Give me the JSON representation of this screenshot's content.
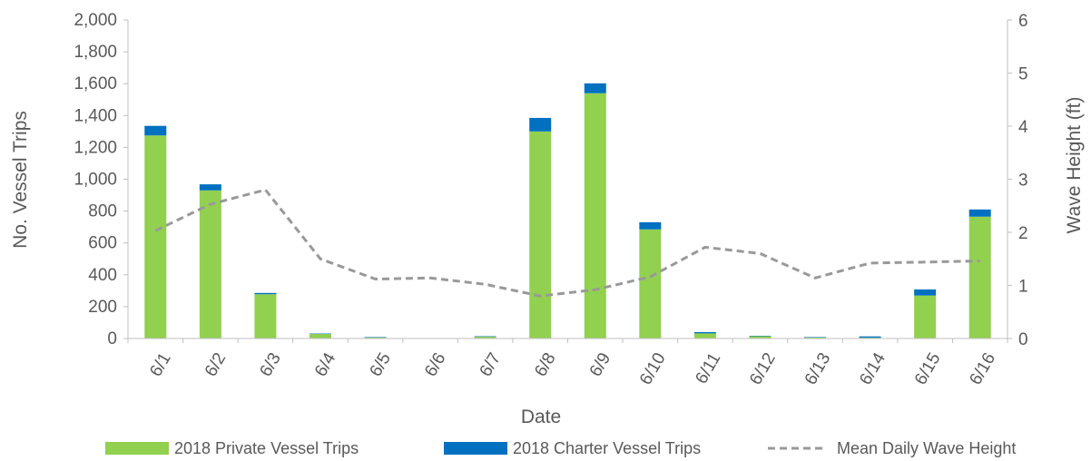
{
  "chart_data": {
    "type": "bar",
    "stacked": true,
    "title": "",
    "xlabel": "Date",
    "ylabel": "No. Vessel Trips",
    "y2label": "Wave Height (ft)",
    "ylim": [
      0,
      2000
    ],
    "y2lim": [
      0,
      6
    ],
    "yticks": [
      "0",
      "200",
      "400",
      "600",
      "800",
      "1,000",
      "1,200",
      "1,400",
      "1,600",
      "1,800",
      "2,000"
    ],
    "y2ticks": [
      "0",
      "1",
      "2",
      "3",
      "4",
      "5",
      "6"
    ],
    "grid": false,
    "legend_position": "bottom",
    "categories": [
      "6/1",
      "6/2",
      "6/3",
      "6/4",
      "6/5",
      "6/6",
      "6/7",
      "6/8",
      "6/9",
      "6/10",
      "6/11",
      "6/12",
      "6/13",
      "6/14",
      "6/15",
      "6/16"
    ],
    "series": [
      {
        "name": "2018 Private Vessel Trips",
        "type": "bar",
        "axis": "left",
        "color": "#92d050",
        "values": [
          1275,
          930,
          278,
          28,
          8,
          0,
          12,
          1300,
          1540,
          685,
          32,
          15,
          8,
          5,
          270,
          765
        ]
      },
      {
        "name": "2018 Charter Vessel Trips",
        "type": "bar",
        "axis": "left",
        "color": "#0070c0",
        "values": [
          60,
          38,
          8,
          3,
          1,
          0,
          2,
          85,
          62,
          45,
          8,
          2,
          1,
          8,
          38,
          45
        ]
      },
      {
        "name": "Mean Daily Wave Height",
        "type": "line",
        "axis": "right",
        "style": "dashed",
        "color": "#999999",
        "values": [
          2.03,
          2.53,
          2.8,
          1.5,
          1.12,
          1.14,
          1.02,
          0.8,
          0.92,
          1.16,
          1.72,
          1.6,
          1.14,
          1.42,
          1.44,
          1.46
        ]
      }
    ]
  }
}
